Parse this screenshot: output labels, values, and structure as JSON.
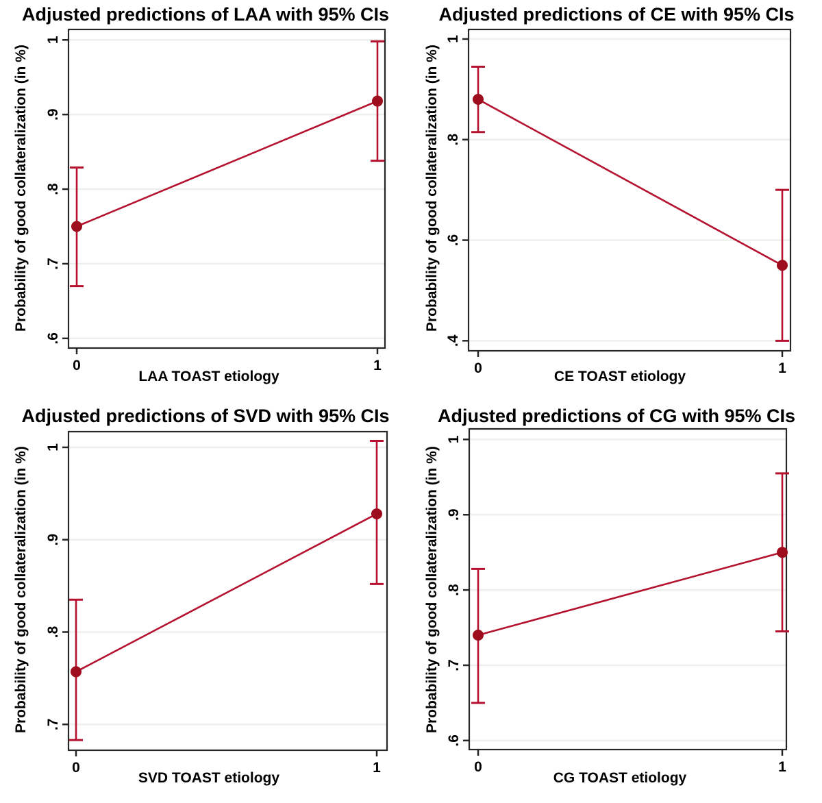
{
  "figure": {
    "background": "#ffffff",
    "line_color": "#b5122f",
    "marker_color": "#9e0d1d",
    "grid_color": "#eef0ee",
    "border_color": "#262626",
    "text_color": "#000000"
  },
  "chart_data": [
    {
      "type": "line",
      "title": "Adjusted predictions of LAA with 95% CIs",
      "xlabel": "LAA TOAST etiology",
      "ylabel": "Probability of good collateralization (in %)",
      "categories": [
        0,
        1
      ],
      "xticklabels": [
        "0",
        "1"
      ],
      "yticks": [
        0.6,
        0.7,
        0.8,
        0.9,
        1
      ],
      "yticklabels": [
        ".6",
        ".7",
        ".8",
        ".9",
        "1"
      ],
      "ylim": [
        0.587,
        1.014
      ],
      "grid": true,
      "legend": "none",
      "series": [
        {
          "name": "Adjusted prediction with 95% CI",
          "values": [
            0.75,
            0.918
          ],
          "ci_low": [
            0.67,
            0.838
          ],
          "ci_high": [
            0.829,
            0.998
          ]
        }
      ]
    },
    {
      "type": "line",
      "title": "Adjusted predictions of CE with 95% CIs",
      "xlabel": "CE TOAST etiology",
      "ylabel": "Probability of good collateralization (in %)",
      "categories": [
        0,
        1
      ],
      "xticklabels": [
        "0",
        "1"
      ],
      "yticks": [
        0.4,
        0.6,
        0.8,
        1
      ],
      "yticklabels": [
        ".4",
        ".6",
        ".8",
        "1"
      ],
      "ylim": [
        0.38,
        1.019
      ],
      "grid": true,
      "legend": "none",
      "series": [
        {
          "name": "Adjusted prediction with 95% CI",
          "values": [
            0.88,
            0.55
          ],
          "ci_low": [
            0.815,
            0.4
          ],
          "ci_high": [
            0.945,
            0.7
          ]
        }
      ]
    },
    {
      "type": "line",
      "title": "Adjusted predictions of SVD with 95% CIs",
      "xlabel": "SVD TOAST etiology",
      "ylabel": "Probability of good collateralization (in %)",
      "categories": [
        0,
        1
      ],
      "xticklabels": [
        "0",
        "1"
      ],
      "yticks": [
        0.7,
        0.8,
        0.9,
        1
      ],
      "yticklabels": [
        ".7",
        ".8",
        ".9",
        "1"
      ],
      "ylim": [
        0.672,
        1.017
      ],
      "grid": true,
      "legend": "none",
      "series": [
        {
          "name": "Adjusted prediction with 95% CI",
          "values": [
            0.757,
            0.928
          ],
          "ci_low": [
            0.683,
            0.852
          ],
          "ci_high": [
            0.835,
            1.007
          ]
        }
      ]
    },
    {
      "type": "line",
      "title": "Adjusted predictions of CG with 95% CIs",
      "xlabel": "CG TOAST etiology",
      "ylabel": "Probability of good collateralization (in %)",
      "categories": [
        0,
        1
      ],
      "xticklabels": [
        "0",
        "1"
      ],
      "yticks": [
        0.6,
        0.7,
        0.8,
        0.9,
        1
      ],
      "yticklabels": [
        ".6",
        ".7",
        ".8",
        ".9",
        "1"
      ],
      "ylim": [
        0.588,
        1.014
      ],
      "grid": true,
      "legend": "none",
      "series": [
        {
          "name": "Adjusted prediction with 95% CI",
          "values": [
            0.74,
            0.85
          ],
          "ci_low": [
            0.65,
            0.745
          ],
          "ci_high": [
            0.828,
            0.955
          ]
        }
      ]
    }
  ]
}
